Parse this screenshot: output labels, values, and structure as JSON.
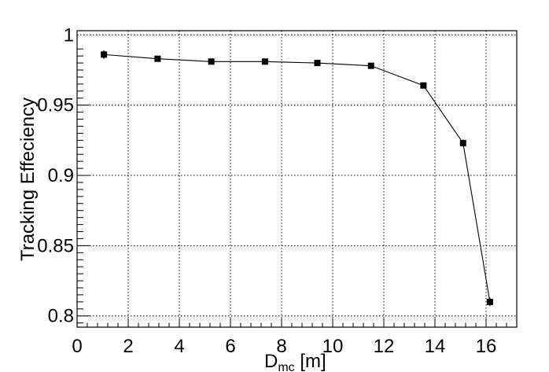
{
  "chart_data": {
    "type": "line",
    "title": "",
    "xlabel_main": "D",
    "xlabel_sub": "mc",
    "xlabel_unit": " [m]",
    "ylabel": "Tracking Effeciency",
    "xlim": [
      0,
      17.2
    ],
    "ylim": [
      0.792,
      1.003
    ],
    "x_ticks": [
      0,
      2,
      4,
      6,
      8,
      10,
      12,
      14,
      16
    ],
    "x_tick_labels": [
      "0",
      "2",
      "4",
      "6",
      "8",
      "10",
      "12",
      "14",
      "16"
    ],
    "y_ticks": [
      0.8,
      0.85,
      0.9,
      0.95,
      1.0
    ],
    "y_tick_labels": [
      "0.8",
      "0.85",
      "0.9",
      "0.95",
      "1"
    ],
    "grid": true,
    "series": [
      {
        "x": [
          1.05,
          3.15,
          5.25,
          7.35,
          9.4,
          11.5,
          13.55,
          15.1,
          16.15
        ],
        "y": [
          0.986,
          0.983,
          0.981,
          0.981,
          0.98,
          0.978,
          0.964,
          0.923,
          0.81
        ],
        "yerr": [
          0.003,
          0.0015,
          0.0015,
          0.0015,
          0.0015,
          0.0015,
          0.0015,
          0.0025,
          0.003
        ]
      }
    ],
    "colors": {
      "line": "#000000",
      "marker": "#000000",
      "grid": "#000000",
      "axis": "#000000"
    }
  }
}
